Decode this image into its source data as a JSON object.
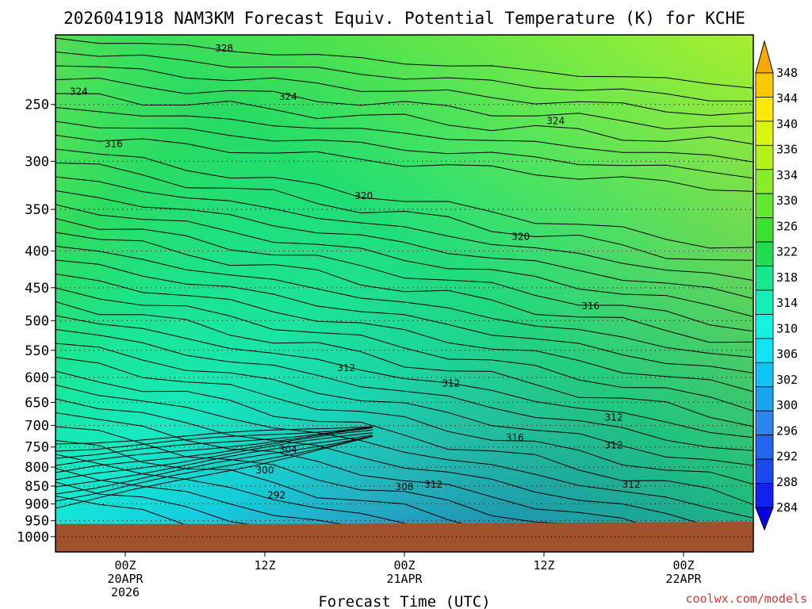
{
  "chart_data": {
    "type": "heatmap",
    "title": "2026041918 NAM3KM Forecast Equiv. Potential Temperature (K) for KCHE",
    "xlabel": "Forecast Time (UTC)",
    "ylabel": "",
    "x_ticks": [
      {
        "hour": 0,
        "lines": [
          "00Z",
          "20APR",
          "2026"
        ]
      },
      {
        "hour": 12,
        "lines": [
          "12Z"
        ]
      },
      {
        "hour": 24,
        "lines": [
          "00Z",
          "21APR"
        ]
      },
      {
        "hour": 36,
        "lines": [
          "12Z"
        ]
      },
      {
        "hour": 48,
        "lines": [
          "00Z",
          "22APR"
        ]
      }
    ],
    "x_range_hours": [
      -6,
      54
    ],
    "y_axis": "pressure (log scale)",
    "y_ticks": [
      250,
      300,
      350,
      400,
      450,
      500,
      550,
      600,
      650,
      700,
      750,
      800,
      850,
      900,
      950,
      1000
    ],
    "y_range_hpa": [
      200,
      1050
    ],
    "ground_pressure_hpa": [
      960,
      960,
      957,
      953
    ],
    "colorbar": {
      "levels": [
        284,
        288,
        292,
        296,
        300,
        302,
        306,
        310,
        314,
        318,
        322,
        326,
        330,
        334,
        336,
        340,
        344,
        348
      ],
      "colors": [
        "#0a00e8",
        "#1220f0",
        "#1c48f0",
        "#2266f0",
        "#2a86ee",
        "#1aa4f0",
        "#10c4f6",
        "#14e2f6",
        "#16f2e0",
        "#16eeb8",
        "#18e88c",
        "#20de50",
        "#3ce030",
        "#60e830",
        "#88ec28",
        "#b4f01a",
        "#dcf412",
        "#fde80c",
        "#fcc800",
        "#f9a800"
      ]
    },
    "contour_labels": [
      {
        "value": 328,
        "hour": 8.5,
        "p": 210
      },
      {
        "value": 324,
        "hour": -4.0,
        "p": 241
      },
      {
        "value": 324,
        "hour": 14.0,
        "p": 245
      },
      {
        "value": 324,
        "hour": 37.0,
        "p": 265
      },
      {
        "value": 316,
        "hour": -1.0,
        "p": 285
      },
      {
        "value": 320,
        "hour": 20.5,
        "p": 337
      },
      {
        "value": 320,
        "hour": 34.0,
        "p": 384
      },
      {
        "value": 316,
        "hour": 40.0,
        "p": 480
      },
      {
        "value": 312,
        "hour": 19.0,
        "p": 585
      },
      {
        "value": 312,
        "hour": 28.0,
        "p": 615
      },
      {
        "value": 312,
        "hour": 42.0,
        "p": 686
      },
      {
        "value": 316,
        "hour": 33.5,
        "p": 732
      },
      {
        "value": 312,
        "hour": 42.0,
        "p": 750
      },
      {
        "value": 304,
        "hour": 14.0,
        "p": 760
      },
      {
        "value": 300,
        "hour": 12.0,
        "p": 812
      },
      {
        "value": 292,
        "hour": 13.0,
        "p": 880
      },
      {
        "value": 308,
        "hour": 24.0,
        "p": 857
      },
      {
        "value": 312,
        "hour": 26.5,
        "p": 850
      },
      {
        "value": 312,
        "hour": 43.5,
        "p": 850
      }
    ]
  },
  "credit": "coolwx.com/models"
}
